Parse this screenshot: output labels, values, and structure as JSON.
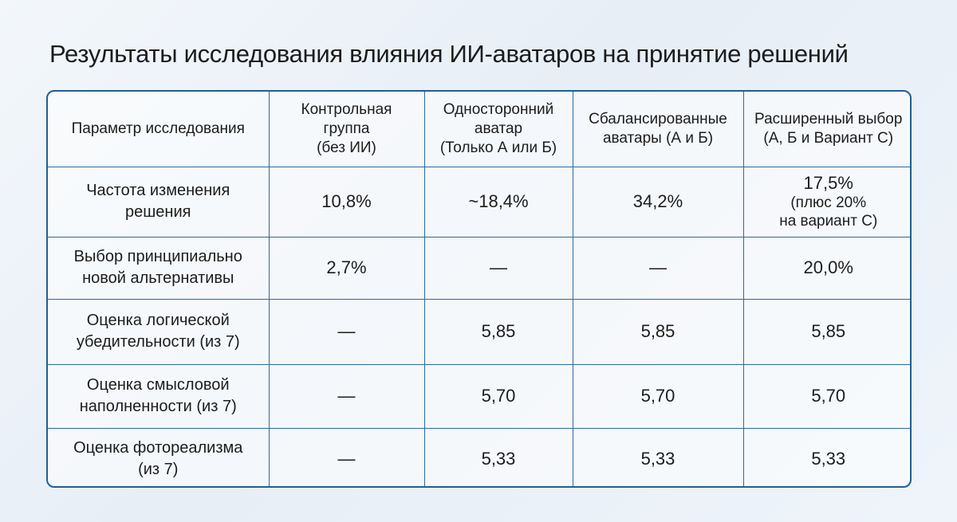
{
  "title": "Результаты исследования влияния ИИ-аватаров на принятие решений",
  "table": {
    "header": [
      [
        "Параметр исследования"
      ],
      [
        "Контрольная",
        "группа",
        "(без ИИ)"
      ],
      [
        "Односторонний",
        "аватар",
        "(Только А или Б)"
      ],
      [
        "Сбалансированные",
        "аватары (А и Б)"
      ],
      [
        "Расширенный выбор",
        "(А, Б и Вариант С)"
      ]
    ],
    "rows": [
      [
        [
          "Частота изменения",
          "решения"
        ],
        [
          "10,8%"
        ],
        [
          "~18,4%"
        ],
        [
          "34,2%"
        ],
        [
          "17,5%",
          "(плюс 20%",
          "на вариант С)"
        ]
      ],
      [
        [
          "Выбор принципиально",
          "новой альтернативы"
        ],
        [
          "2,7%"
        ],
        [
          "—"
        ],
        [
          "—"
        ],
        [
          "20,0%"
        ]
      ],
      [
        [
          "Оценка логической",
          "убедительности (из 7)"
        ],
        [
          "—"
        ],
        [
          "5,85"
        ],
        [
          "5,85"
        ],
        [
          "5,85"
        ]
      ],
      [
        [
          "Оценка смысловой",
          "наполненности (из 7)"
        ],
        [
          "—"
        ],
        [
          "5,70"
        ],
        [
          "5,70"
        ],
        [
          "5,70"
        ]
      ],
      [
        [
          "Оценка фотореализма",
          "(из 7)"
        ],
        [
          "—"
        ],
        [
          "5,33"
        ],
        [
          "5,33"
        ],
        [
          "5,33"
        ]
      ]
    ]
  }
}
